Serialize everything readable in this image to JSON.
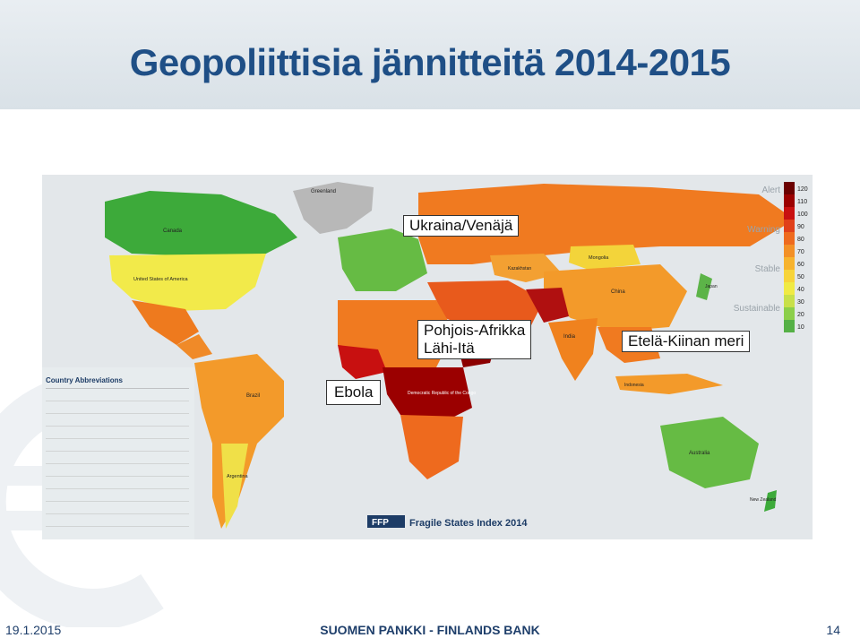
{
  "slide": {
    "title": "Geopoliittisia jännitteitä 2014-2015",
    "date": "19.1.2015",
    "organization": "SUOMEN PANKKI - FINLANDS BANK",
    "page_number": "14"
  },
  "callouts": {
    "ukraine": "Ukraina/Venäjä",
    "north_africa_line1": "Pohjois-Afrikka",
    "north_africa_line2": "Lähi-Itä",
    "south_china_sea": "Etelä-Kiinan meri",
    "ebola": "Ebola"
  },
  "map": {
    "brand": "FFP",
    "caption": "Fragile States Index 2014",
    "abbreviations_title": "Country Abbreviations",
    "legend": {
      "categories": [
        "Alert",
        "Warning",
        "Stable",
        "Sustainable"
      ],
      "scale": [
        "120",
        "110",
        "100",
        "90",
        "80",
        "70",
        "60",
        "50",
        "40",
        "30",
        "20",
        "10"
      ],
      "colors": [
        "#6b0000",
        "#9b0000",
        "#c81010",
        "#e0401a",
        "#ee6a1e",
        "#f39026",
        "#f7b32e",
        "#f7d43a",
        "#f0ea44",
        "#c8e04a",
        "#8ccf4a",
        "#55b046"
      ]
    },
    "labels": {
      "greenland": "Greenland",
      "canada": "Canada",
      "usa": "United States of America",
      "mongolia": "Mongolia",
      "china": "China",
      "kazakhstan": "Kazakhstan",
      "australia": "Australia",
      "brazil": "Brazil",
      "argentina": "Argentina",
      "drc": "Democratic Republic of the Congo",
      "india": "India",
      "new_zealand": "New Zealand",
      "japan": "Japan",
      "indonesia": "Indonesia"
    }
  }
}
